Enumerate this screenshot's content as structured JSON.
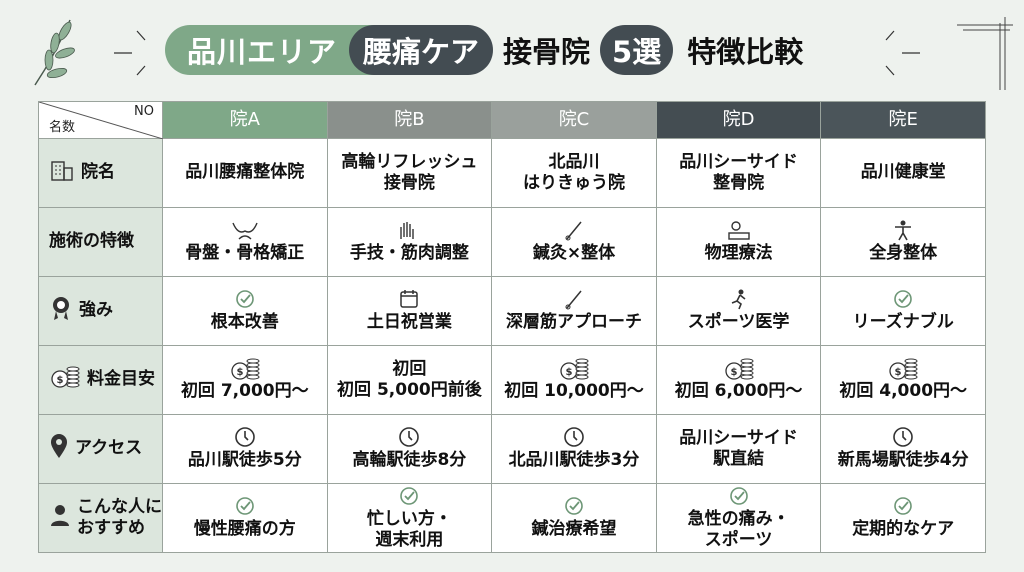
{
  "title": {
    "part1": "品川エリア",
    "part2": "腰痛ケア",
    "part3": "接骨院",
    "part4": "5選",
    "part5": "特徴比較"
  },
  "corner": {
    "top": "NO",
    "bottom": "名数"
  },
  "columns": [
    {
      "label": "院A",
      "color": "#7fa888"
    },
    {
      "label": "院B",
      "color": "#8a908c"
    },
    {
      "label": "院C",
      "color": "#9aa09c"
    },
    {
      "label": "院D",
      "color": "#444d52"
    },
    {
      "label": "院E",
      "color": "#4b555a"
    }
  ],
  "rows": [
    {
      "label": "院名",
      "icon": "building-icon",
      "cells": [
        {
          "text": "品川腰痛整体院"
        },
        {
          "text": "高輪リフレッシュ\n接骨院"
        },
        {
          "text": "北品川\nはりきゅう院"
        },
        {
          "text": "品川シーサイド\n整骨院"
        },
        {
          "text": "品川健康堂"
        }
      ]
    },
    {
      "label": "施術の特徴",
      "icon": "",
      "cells": [
        {
          "text": "骨盤・骨格矯正",
          "icon": "pelvis-icon"
        },
        {
          "text": "手技・筋肉調整",
          "icon": "hands-icon"
        },
        {
          "text": "鍼灸×整体",
          "icon": "needle-icon"
        },
        {
          "text": "物理療法",
          "icon": "therapy-icon"
        },
        {
          "text": "全身整体",
          "icon": "body-icon"
        }
      ]
    },
    {
      "label": "強み",
      "icon": "award-icon",
      "cells": [
        {
          "text": "根本改善",
          "icon": "check-icon"
        },
        {
          "text": "土日祝営業",
          "icon": "calendar-icon"
        },
        {
          "text": "深層筋アプローチ",
          "icon": "needle-icon"
        },
        {
          "text": "スポーツ医学",
          "icon": "sport-icon"
        },
        {
          "text": "リーズナブル",
          "icon": "check-icon"
        }
      ]
    },
    {
      "label": "料金目安",
      "icon": "coins-icon",
      "cells": [
        {
          "text": "初回 7,000円〜",
          "icon": "coins-icon"
        },
        {
          "text": "初回\n初回 5,000円前後"
        },
        {
          "text": "初回 10,000円〜",
          "icon": "coins-icon"
        },
        {
          "text": "初回 6,000円〜",
          "icon": "coins-icon"
        },
        {
          "text": "初回 4,000円〜",
          "icon": "coins-icon"
        }
      ]
    },
    {
      "label": "アクセス",
      "icon": "pin-icon",
      "cells": [
        {
          "text": "品川駅徒歩5分",
          "icon": "clock-icon"
        },
        {
          "text": "高輪駅徒歩8分",
          "icon": "clock-icon"
        },
        {
          "text": "北品川駅徒歩3分",
          "icon": "clock-icon"
        },
        {
          "text": "品川シーサイド\n駅直結"
        },
        {
          "text": "新馬場駅徒歩4分",
          "icon": "clock-icon"
        }
      ]
    },
    {
      "label": "こんな人に\nおすすめ",
      "icon": "person-icon",
      "cells": [
        {
          "text": "慢性腰痛の方",
          "icon": "check-icon"
        },
        {
          "text": "忙しい方・\n週末利用",
          "icon": "check-icon"
        },
        {
          "text": "鍼治療希望",
          "icon": "check-icon"
        },
        {
          "text": "急性の痛み・\nスポーツ",
          "icon": "check-icon"
        },
        {
          "text": "定期的なケア",
          "icon": "check-icon"
        }
      ]
    }
  ]
}
